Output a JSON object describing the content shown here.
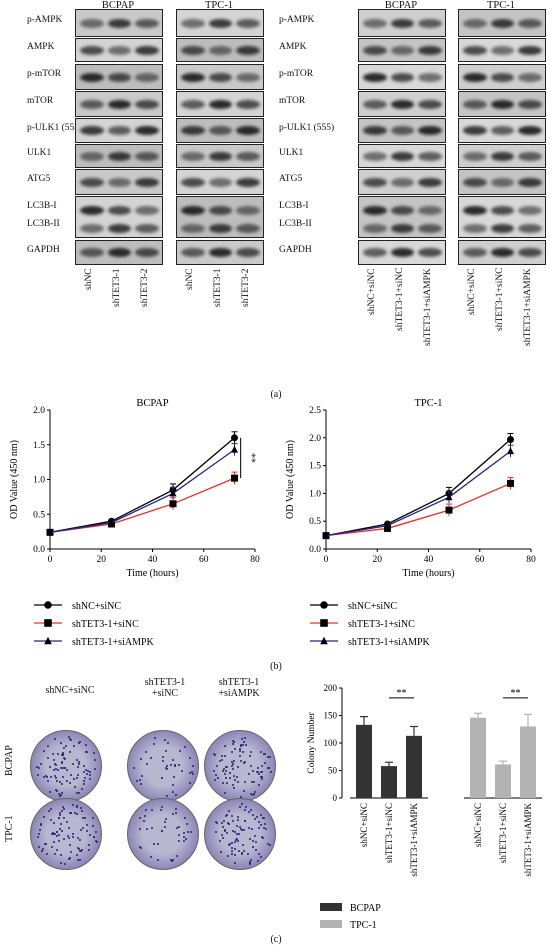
{
  "western_left": {
    "groups": [
      "BCPAP",
      "TPC-1"
    ],
    "rows": [
      "p-AMPK",
      "AMPK",
      "p-mTOR",
      "mTOR",
      "p-ULK1 (555)",
      "ULK1",
      "ATG5",
      "LC3B-I",
      "LC3B-II",
      "GAPDH"
    ],
    "lanes": [
      "shNC",
      "shTET3-1",
      "shTET3-2",
      "shNC",
      "shTET3-1",
      "shTET3-2"
    ]
  },
  "western_right": {
    "groups": [
      "BCPAP",
      "TPC-1"
    ],
    "rows": [
      "p-AMPK",
      "AMPK",
      "p-mTOR",
      "mTOR",
      "p-ULK1 (555)",
      "ULK1",
      "ATG5",
      "LC3B-I",
      "LC3B-II",
      "GAPDH"
    ],
    "lanes": [
      "shNC+siNC",
      "shTET3-1+siNC",
      "shTET3-1+siAMPK",
      "shNC+siNC",
      "shTET3-1+siNC",
      "shTET3-1+siAMPK"
    ]
  },
  "panel_labels": {
    "a": "(a)",
    "b": "(b)",
    "c": "(c)"
  },
  "chart_data": [
    {
      "type": "line",
      "title": "BCPAP",
      "xlabel": "Time (hours)",
      "ylabel": "OD Value (450 nm)",
      "xlim": [
        0,
        80
      ],
      "ylim": [
        0,
        2.0
      ],
      "xticks": [
        0,
        20,
        40,
        60,
        80
      ],
      "yticks": [
        0.0,
        0.5,
        1.0,
        1.5,
        2.0
      ],
      "annotation": "**",
      "series": [
        {
          "name": "shNC+siNC",
          "color": "#000000",
          "marker": "circle",
          "x": [
            0,
            24,
            48,
            72
          ],
          "y": [
            0.24,
            0.4,
            0.85,
            1.6
          ]
        },
        {
          "name": "shTET3-1+siNC",
          "color": "#e8302a",
          "marker": "square",
          "x": [
            0,
            24,
            48,
            72
          ],
          "y": [
            0.24,
            0.36,
            0.65,
            1.02
          ]
        },
        {
          "name": "shTET3-1+siAMPK",
          "color": "#1f2a8a",
          "marker": "triangle",
          "x": [
            0,
            24,
            48,
            72
          ],
          "y": [
            0.24,
            0.38,
            0.8,
            1.43
          ]
        }
      ]
    },
    {
      "type": "line",
      "title": "TPC-1",
      "xlabel": "Time (hours)",
      "ylabel": "OD Value (450 nm)",
      "xlim": [
        0,
        80
      ],
      "ylim": [
        0,
        2.5
      ],
      "xticks": [
        0,
        20,
        40,
        60,
        80
      ],
      "yticks": [
        0.0,
        0.5,
        1.0,
        1.5,
        2.0,
        2.5
      ],
      "series": [
        {
          "name": "shNC+siNC",
          "color": "#000000",
          "marker": "circle",
          "x": [
            0,
            24,
            48,
            72
          ],
          "y": [
            0.24,
            0.45,
            1.0,
            1.97
          ]
        },
        {
          "name": "shTET3-1+siNC",
          "color": "#e8302a",
          "marker": "square",
          "x": [
            0,
            24,
            48,
            72
          ],
          "y": [
            0.24,
            0.37,
            0.7,
            1.18
          ]
        },
        {
          "name": "shTET3-1+siAMPK",
          "color": "#1f2a8a",
          "marker": "triangle",
          "x": [
            0,
            24,
            48,
            72
          ],
          "y": [
            0.24,
            0.42,
            0.93,
            1.76
          ]
        }
      ]
    },
    {
      "type": "bar",
      "xlabel": "",
      "ylabel": "Colony Number",
      "ylim": [
        0,
        200
      ],
      "yticks": [
        0,
        50,
        100,
        150,
        200
      ],
      "categories": [
        "shNC+siNC",
        "shTET3-1+siNC",
        "shTET3-1+siAMPK"
      ],
      "annotation": "**",
      "series": [
        {
          "name": "BCPAP",
          "color": "#333333",
          "values": [
            133,
            58,
            113
          ],
          "errors": [
            15,
            7,
            17
          ]
        },
        {
          "name": "TPC-1",
          "color": "#b3b3b3",
          "values": [
            146,
            61,
            130
          ],
          "errors": [
            8,
            6,
            22
          ]
        }
      ]
    }
  ],
  "colony": {
    "columns": [
      "shNC+siNC",
      "shTET3-1\n+siNC",
      "shTET3-1\n+siAMPK"
    ],
    "rows": [
      "BCPAP",
      "TPC-1"
    ]
  }
}
